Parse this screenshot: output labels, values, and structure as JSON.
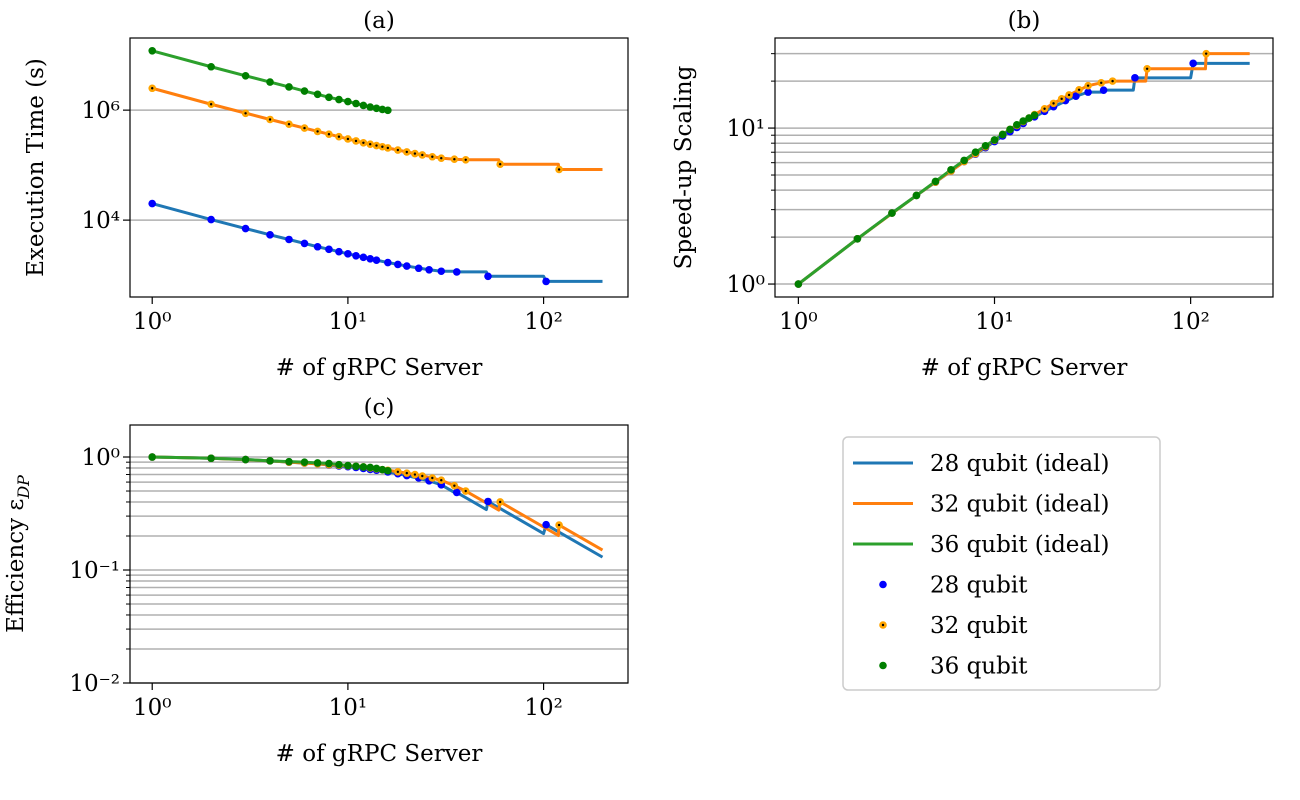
{
  "chart_data": [
    {
      "type": "line",
      "title": "(a)",
      "xlabel": "# of gRPC Server",
      "ylabel": "Execution Time (s)",
      "xscale": "log",
      "yscale": "log",
      "grid": true,
      "xlim": [
        0.77,
        270
      ],
      "ylim": [
        400,
        20500000
      ],
      "xticks": [
        {
          "value": 1,
          "label": "10⁰"
        },
        {
          "value": 10,
          "label": "10¹"
        },
        {
          "value": 100,
          "label": "10²"
        }
      ],
      "yticks": [
        {
          "value": 10000,
          "label": "10⁴"
        },
        {
          "value": 1000000,
          "label": "10⁶"
        }
      ],
      "yminorticks": [],
      "series": [
        {
          "name": "28 qubit (ideal)",
          "color": "#1f77b4",
          "style": "line",
          "x": [
            1,
            2,
            3,
            4,
            5,
            6,
            7,
            8,
            9,
            10,
            12,
            14,
            16,
            20,
            26,
            30,
            35,
            36,
            51,
            52,
            100,
            103,
            200
          ],
          "values": [
            20000,
            10256,
            7018,
            5405,
            4444,
            3774,
            3279,
            2941,
            2667,
            2439,
            2105,
            1869,
            1695,
            1460,
            1250,
            1176,
            1176,
            1143,
            1143,
            952,
            952,
            769,
            769
          ]
        },
        {
          "name": "32 qubit (ideal)",
          "color": "#ff7f0e",
          "style": "line",
          "x": [
            1,
            2,
            4,
            8,
            12,
            16,
            20,
            24,
            30,
            35,
            40,
            59,
            60,
            119,
            120,
            200
          ],
          "values": [
            2500000,
            1280000,
            676000,
            365000,
            255000,
            205000,
            174000,
            153000,
            134000,
            128000,
            125000,
            125000,
            104000,
            104000,
            83300,
            83300
          ]
        },
        {
          "name": "36 qubit (ideal)",
          "color": "#2ca02c",
          "style": "line",
          "x": [
            1,
            2,
            3,
            4,
            5,
            6,
            7,
            8,
            9,
            10,
            11,
            12,
            13,
            14,
            15,
            16
          ],
          "values": [
            12000000,
            6150000,
            4210000,
            3240000,
            2640000,
            2220000,
            1940000,
            1710000,
            1560000,
            1430000,
            1320000,
            1220000,
            1140000,
            1080000,
            1030000,
            992000
          ]
        },
        {
          "name": "28 qubit",
          "color": "#0000ff",
          "style": "marker",
          "x": [
            1,
            2,
            3,
            4,
            5,
            6,
            7,
            8,
            9,
            10,
            11,
            12,
            13,
            14,
            16,
            18,
            20,
            23,
            26,
            30,
            36,
            52,
            103
          ],
          "values": [
            20000,
            10256,
            7018,
            5405,
            4444,
            3774,
            3279,
            2941,
            2667,
            2439,
            2247,
            2105,
            1980,
            1869,
            1695,
            1563,
            1460,
            1333,
            1250,
            1176,
            1143,
            952,
            769
          ]
        },
        {
          "name": "32 qubit",
          "color": "#ffa500",
          "center_color": "#000000",
          "style": "marker",
          "x": [
            1,
            2,
            3,
            4,
            5,
            6,
            7,
            8,
            9,
            10,
            11,
            12,
            13,
            14,
            15,
            16,
            18,
            20,
            22,
            24,
            27,
            30,
            35,
            40,
            60,
            120
          ],
          "values": [
            2500000,
            1280000,
            877000,
            676000,
            556000,
            472000,
            410000,
            365000,
            329000,
            299000,
            275000,
            255000,
            240000,
            227000,
            216000,
            205000,
            188000,
            174000,
            162000,
            153000,
            142000,
            134000,
            128000,
            125000,
            104000,
            83300
          ]
        },
        {
          "name": "36 qubit",
          "color": "#007f00",
          "style": "marker",
          "x": [
            1,
            2,
            3,
            4,
            5,
            6,
            7,
            8,
            9,
            10,
            11,
            12,
            13,
            14,
            15,
            16
          ],
          "values": [
            12000000,
            6150000,
            4210000,
            3240000,
            2640000,
            2220000,
            1940000,
            1710000,
            1560000,
            1430000,
            1320000,
            1220000,
            1140000,
            1080000,
            1030000,
            992000
          ]
        }
      ]
    },
    {
      "type": "line",
      "title": "(b)",
      "xlabel": "# of gRPC Server",
      "ylabel": "Speed-up Scaling",
      "xscale": "log",
      "yscale": "log",
      "grid": true,
      "xlim": [
        0.76,
        263
      ],
      "ylim": [
        0.826,
        37.8
      ],
      "xticks": [
        {
          "value": 1,
          "label": "10⁰"
        },
        {
          "value": 10,
          "label": "10¹"
        },
        {
          "value": 100,
          "label": "10²"
        }
      ],
      "yticks": [
        {
          "value": 1,
          "label": "10⁰"
        },
        {
          "value": 10,
          "label": "10¹"
        }
      ],
      "yminorticks": [
        2,
        3,
        4,
        5,
        6,
        7,
        8,
        9,
        20,
        30
      ],
      "series": [
        {
          "color": "#1f77b4",
          "style": "line",
          "x": [
            1,
            2,
            3,
            4,
            5,
            6,
            7,
            8,
            9,
            10,
            12,
            14,
            16,
            20,
            26,
            30,
            35,
            36,
            51,
            52,
            100,
            103,
            200
          ],
          "values": [
            1,
            1.95,
            2.85,
            3.7,
            4.5,
            5.3,
            6.1,
            6.8,
            7.5,
            8.2,
            9.5,
            10.7,
            11.8,
            13.7,
            16,
            17,
            17,
            17.5,
            17.5,
            21,
            21,
            26,
            26
          ]
        },
        {
          "color": "#ff7f0e",
          "style": "line",
          "x": [
            1,
            2,
            4,
            8,
            12,
            16,
            20,
            24,
            30,
            35,
            40,
            59,
            60,
            119,
            120,
            200
          ],
          "values": [
            1,
            1.95,
            3.7,
            6.85,
            9.8,
            12.2,
            14.4,
            16.3,
            18.7,
            19.5,
            20,
            20,
            24,
            24,
            30,
            30
          ]
        },
        {
          "color": "#2ca02c",
          "style": "line",
          "x": [
            1,
            2,
            3,
            4,
            5,
            6,
            7,
            8,
            9,
            10,
            11,
            12,
            13,
            14,
            15,
            16
          ],
          "values": [
            1,
            1.95,
            2.85,
            3.7,
            4.55,
            5.4,
            6.2,
            7,
            7.7,
            8.4,
            9.1,
            9.8,
            10.5,
            11.1,
            11.6,
            12.1
          ]
        },
        {
          "color": "#0000ff",
          "style": "marker",
          "x": [
            1,
            2,
            3,
            4,
            5,
            6,
            7,
            8,
            9,
            10,
            11,
            12,
            13,
            14,
            16,
            18,
            20,
            23,
            26,
            30,
            36,
            52,
            103
          ],
          "values": [
            1,
            1.95,
            2.85,
            3.7,
            4.5,
            5.3,
            6.1,
            6.8,
            7.5,
            8.2,
            8.9,
            9.5,
            10.1,
            10.7,
            11.8,
            12.8,
            13.7,
            15,
            16,
            17,
            17.5,
            21,
            26
          ]
        },
        {
          "color": "#ffa500",
          "center_color": "#000000",
          "style": "marker",
          "x": [
            1,
            2,
            3,
            4,
            5,
            6,
            7,
            8,
            9,
            10,
            11,
            12,
            13,
            14,
            15,
            16,
            18,
            20,
            22,
            24,
            27,
            30,
            35,
            40,
            60,
            120
          ],
          "values": [
            1,
            1.95,
            2.85,
            3.7,
            4.5,
            5.3,
            6.1,
            6.85,
            7.6,
            8.35,
            9.1,
            9.8,
            10.4,
            11,
            11.6,
            12.2,
            13.3,
            14.4,
            15.4,
            16.3,
            17.6,
            18.7,
            19.5,
            20,
            24,
            30
          ]
        },
        {
          "color": "#007f00",
          "style": "marker",
          "x": [
            1,
            2,
            3,
            4,
            5,
            6,
            7,
            8,
            9,
            10,
            11,
            12,
            13,
            14,
            15,
            16
          ],
          "values": [
            1,
            1.95,
            2.85,
            3.7,
            4.55,
            5.4,
            6.2,
            7,
            7.7,
            8.4,
            9.1,
            9.8,
            10.5,
            11.1,
            11.6,
            12.1
          ]
        }
      ]
    },
    {
      "type": "line",
      "title": "(c)",
      "xlabel": "# of gRPC Server",
      "ylabel": "Efficiency ε",
      "ylabel_subscript": "DP",
      "xscale": "log",
      "yscale": "log",
      "grid": true,
      "xlim": [
        0.77,
        270
      ],
      "ylim": [
        0.01,
        1.92
      ],
      "xticks": [
        {
          "value": 1,
          "label": "10⁰"
        },
        {
          "value": 10,
          "label": "10¹"
        },
        {
          "value": 100,
          "label": "10²"
        }
      ],
      "yticks": [
        {
          "value": 0.01,
          "label": "10⁻²"
        },
        {
          "value": 0.1,
          "label": "10⁻¹"
        },
        {
          "value": 1,
          "label": "10⁰"
        }
      ],
      "yminorticks": [
        0.02,
        0.03,
        0.04,
        0.05,
        0.06,
        0.07,
        0.08,
        0.09,
        0.2,
        0.3,
        0.4,
        0.5,
        0.6,
        0.7,
        0.8,
        0.9
      ],
      "series": [
        {
          "color": "#1f77b4",
          "style": "line",
          "x": [
            1,
            2,
            3,
            4,
            5,
            6,
            7,
            8,
            9,
            10,
            12,
            14,
            16,
            20,
            26,
            30,
            35,
            36,
            51,
            52,
            100,
            103,
            200
          ],
          "values": [
            1,
            0.975,
            0.95,
            0.925,
            0.9,
            0.883,
            0.871,
            0.85,
            0.833,
            0.82,
            0.792,
            0.764,
            0.738,
            0.685,
            0.615,
            0.567,
            0.486,
            0.486,
            0.343,
            0.404,
            0.21,
            0.252,
            0.13
          ]
        },
        {
          "color": "#ff7f0e",
          "style": "line",
          "x": [
            1,
            2,
            4,
            8,
            12,
            16,
            20,
            24,
            30,
            35,
            40,
            59,
            60,
            119,
            120,
            200
          ],
          "values": [
            1,
            0.975,
            0.925,
            0.856,
            0.817,
            0.763,
            0.72,
            0.679,
            0.623,
            0.557,
            0.5,
            0.339,
            0.4,
            0.202,
            0.25,
            0.15
          ]
        },
        {
          "color": "#2ca02c",
          "style": "line",
          "x": [
            1,
            2,
            3,
            4,
            5,
            6,
            7,
            8,
            9,
            10,
            11,
            12,
            13,
            14,
            15,
            16
          ],
          "values": [
            1,
            0.975,
            0.95,
            0.925,
            0.91,
            0.9,
            0.886,
            0.875,
            0.856,
            0.84,
            0.827,
            0.817,
            0.808,
            0.793,
            0.773,
            0.756
          ]
        },
        {
          "color": "#0000ff",
          "style": "marker",
          "x": [
            1,
            2,
            3,
            4,
            5,
            6,
            7,
            8,
            9,
            10,
            11,
            12,
            13,
            14,
            16,
            18,
            20,
            23,
            26,
            30,
            36,
            52,
            103
          ],
          "values": [
            1,
            0.975,
            0.95,
            0.925,
            0.9,
            0.883,
            0.871,
            0.85,
            0.833,
            0.82,
            0.809,
            0.792,
            0.777,
            0.764,
            0.738,
            0.711,
            0.685,
            0.652,
            0.615,
            0.567,
            0.486,
            0.404,
            0.252
          ]
        },
        {
          "color": "#ffa500",
          "center_color": "#000000",
          "style": "marker",
          "x": [
            1,
            2,
            3,
            4,
            5,
            6,
            7,
            8,
            9,
            10,
            11,
            12,
            13,
            14,
            15,
            16,
            18,
            20,
            22,
            24,
            27,
            30,
            35,
            40,
            60,
            120
          ],
          "values": [
            1,
            0.975,
            0.95,
            0.925,
            0.9,
            0.883,
            0.871,
            0.856,
            0.844,
            0.835,
            0.827,
            0.817,
            0.8,
            0.786,
            0.773,
            0.763,
            0.739,
            0.72,
            0.7,
            0.679,
            0.652,
            0.623,
            0.557,
            0.5,
            0.4,
            0.25
          ]
        },
        {
          "color": "#007f00",
          "style": "marker",
          "x": [
            1,
            2,
            3,
            4,
            5,
            6,
            7,
            8,
            9,
            10,
            11,
            12,
            13,
            14,
            15,
            16
          ],
          "values": [
            1,
            0.975,
            0.95,
            0.925,
            0.91,
            0.9,
            0.886,
            0.875,
            0.856,
            0.84,
            0.827,
            0.817,
            0.808,
            0.793,
            0.773,
            0.756
          ]
        }
      ]
    }
  ]
}
